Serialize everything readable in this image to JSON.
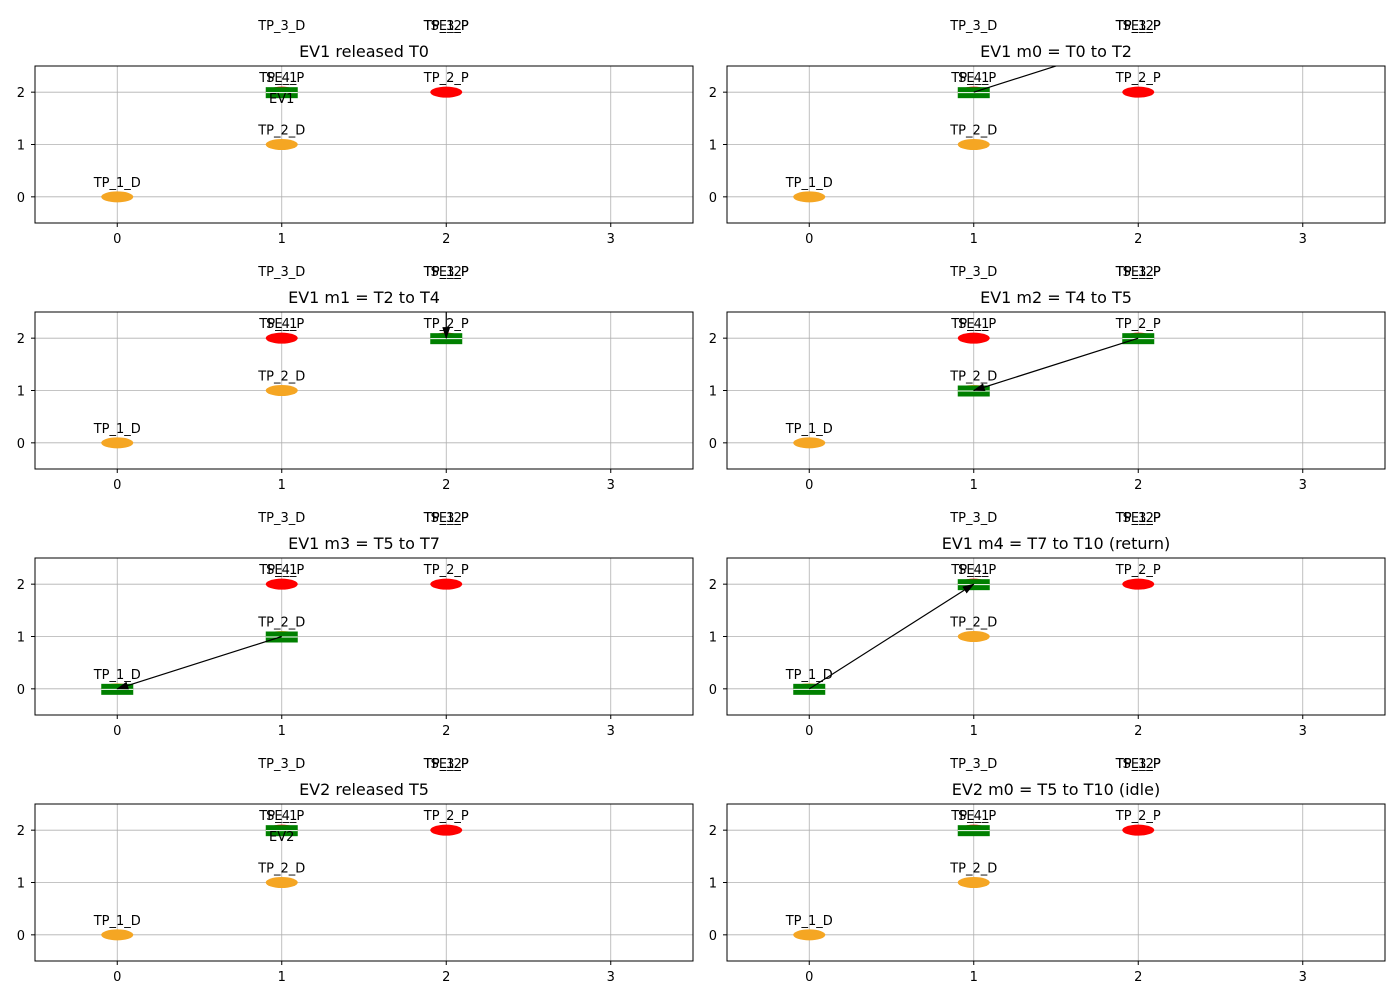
{
  "figure": {
    "background": "#ffffff"
  },
  "colors": {
    "drop_marker": "#f5a623",
    "pickup_marker": "#ff0000",
    "vehicle": "#008000",
    "grid": "#b0b0b0",
    "arrow": "#000000",
    "axes": "#000000"
  },
  "chart_data": [
    {
      "type": "scatter",
      "title": "EV1 released T0",
      "xlim": [
        -0.5,
        3.5
      ],
      "ylim": [
        -0.5,
        2.5
      ],
      "xticks": [
        0,
        1,
        2,
        3
      ],
      "yticks": [
        0,
        1,
        2
      ],
      "grid": true,
      "points": [
        {
          "label": "TP_1_D",
          "x": 0,
          "y": 0,
          "kind": "drop"
        },
        {
          "label": "TP_2_D",
          "x": 1,
          "y": 1,
          "kind": "drop"
        },
        {
          "label": "TP_3_D",
          "x": 1,
          "y": 3,
          "kind": "drop"
        },
        {
          "label": "TP_1_P",
          "x": 2,
          "y": 3,
          "kind": "pickup"
        },
        {
          "label": "TP_2_P",
          "x": 2,
          "y": 2,
          "kind": "pickup"
        },
        {
          "label": "TP_3_P",
          "x": 2,
          "y": 3,
          "kind": "pickup"
        },
        {
          "label": "TP_4_P",
          "x": 1,
          "y": 2,
          "kind": "pickup"
        },
        {
          "label": "SE_1",
          "x": 1,
          "y": 2,
          "kind": "station"
        },
        {
          "label": "SE_2",
          "x": 2,
          "y": 3,
          "kind": "station"
        }
      ],
      "vehicles": [
        {
          "x": 1,
          "y": 2,
          "label": "EV1"
        }
      ],
      "arrows": []
    },
    {
      "type": "scatter",
      "title": "EV1 m0 = T0 to T2",
      "xlim": [
        -0.5,
        3.5
      ],
      "ylim": [
        -0.5,
        2.5
      ],
      "xticks": [
        0,
        1,
        2,
        3
      ],
      "yticks": [
        0,
        1,
        2
      ],
      "grid": true,
      "points": [
        {
          "label": "TP_1_D",
          "x": 0,
          "y": 0,
          "kind": "drop"
        },
        {
          "label": "TP_2_D",
          "x": 1,
          "y": 1,
          "kind": "drop"
        },
        {
          "label": "TP_3_D",
          "x": 1,
          "y": 3,
          "kind": "drop"
        },
        {
          "label": "TP_1_P",
          "x": 2,
          "y": 3,
          "kind": "pickup"
        },
        {
          "label": "TP_2_P",
          "x": 2,
          "y": 2,
          "kind": "pickup"
        },
        {
          "label": "TP_3_P",
          "x": 2,
          "y": 3,
          "kind": "pickup"
        },
        {
          "label": "TP_4_P",
          "x": 1,
          "y": 2,
          "kind": "pickup"
        },
        {
          "label": "SE_1",
          "x": 1,
          "y": 2,
          "kind": "station"
        },
        {
          "label": "SE_2",
          "x": 2,
          "y": 3,
          "kind": "station"
        }
      ],
      "vehicles": [
        {
          "x": 1,
          "y": 2,
          "label": ""
        }
      ],
      "arrows": [
        {
          "from": [
            1,
            2
          ],
          "to": [
            2,
            3
          ]
        }
      ]
    },
    {
      "type": "scatter",
      "title": "EV1 m1 = T2 to T4",
      "xlim": [
        -0.5,
        3.5
      ],
      "ylim": [
        -0.5,
        2.5
      ],
      "xticks": [
        0,
        1,
        2,
        3
      ],
      "yticks": [
        0,
        1,
        2
      ],
      "grid": true,
      "points": [
        {
          "label": "TP_1_D",
          "x": 0,
          "y": 0,
          "kind": "drop"
        },
        {
          "label": "TP_2_D",
          "x": 1,
          "y": 1,
          "kind": "drop"
        },
        {
          "label": "TP_3_D",
          "x": 1,
          "y": 3,
          "kind": "drop"
        },
        {
          "label": "TP_1_P",
          "x": 2,
          "y": 3,
          "kind": "pickup"
        },
        {
          "label": "TP_2_P",
          "x": 2,
          "y": 2,
          "kind": "pickup"
        },
        {
          "label": "TP_3_P",
          "x": 2,
          "y": 3,
          "kind": "pickup"
        },
        {
          "label": "TP_4_P",
          "x": 1,
          "y": 2,
          "kind": "pickup"
        },
        {
          "label": "SE_1",
          "x": 1,
          "y": 2,
          "kind": "station"
        },
        {
          "label": "SE_2",
          "x": 2,
          "y": 3,
          "kind": "station"
        }
      ],
      "vehicles": [
        {
          "x": 2,
          "y": 2,
          "label": ""
        }
      ],
      "arrows": [
        {
          "from": [
            2,
            3
          ],
          "to": [
            2,
            2
          ]
        }
      ]
    },
    {
      "type": "scatter",
      "title": "EV1 m2 = T4 to T5",
      "xlim": [
        -0.5,
        3.5
      ],
      "ylim": [
        -0.5,
        2.5
      ],
      "xticks": [
        0,
        1,
        2,
        3
      ],
      "yticks": [
        0,
        1,
        2
      ],
      "grid": true,
      "points": [
        {
          "label": "TP_1_D",
          "x": 0,
          "y": 0,
          "kind": "drop"
        },
        {
          "label": "TP_2_D",
          "x": 1,
          "y": 1,
          "kind": "drop"
        },
        {
          "label": "TP_3_D",
          "x": 1,
          "y": 3,
          "kind": "drop"
        },
        {
          "label": "TP_1_P",
          "x": 2,
          "y": 3,
          "kind": "pickup"
        },
        {
          "label": "TP_2_P",
          "x": 2,
          "y": 2,
          "kind": "pickup"
        },
        {
          "label": "TP_3_P",
          "x": 2,
          "y": 3,
          "kind": "pickup"
        },
        {
          "label": "TP_4_P",
          "x": 1,
          "y": 2,
          "kind": "pickup"
        },
        {
          "label": "SE_1",
          "x": 1,
          "y": 2,
          "kind": "station"
        },
        {
          "label": "SE_2",
          "x": 2,
          "y": 3,
          "kind": "station"
        }
      ],
      "vehicles": [
        {
          "x": 1,
          "y": 1,
          "label": ""
        },
        {
          "x": 2,
          "y": 2,
          "label": ""
        }
      ],
      "arrows": [
        {
          "from": [
            2,
            2
          ],
          "to": [
            1,
            1
          ]
        }
      ]
    },
    {
      "type": "scatter",
      "title": "EV1 m3 = T5 to T7",
      "xlim": [
        -0.5,
        3.5
      ],
      "ylim": [
        -0.5,
        2.5
      ],
      "xticks": [
        0,
        1,
        2,
        3
      ],
      "yticks": [
        0,
        1,
        2
      ],
      "grid": true,
      "points": [
        {
          "label": "TP_1_D",
          "x": 0,
          "y": 0,
          "kind": "drop"
        },
        {
          "label": "TP_2_D",
          "x": 1,
          "y": 1,
          "kind": "drop"
        },
        {
          "label": "TP_3_D",
          "x": 1,
          "y": 3,
          "kind": "drop"
        },
        {
          "label": "TP_1_P",
          "x": 2,
          "y": 3,
          "kind": "pickup"
        },
        {
          "label": "TP_2_P",
          "x": 2,
          "y": 2,
          "kind": "pickup"
        },
        {
          "label": "TP_3_P",
          "x": 2,
          "y": 3,
          "kind": "pickup"
        },
        {
          "label": "TP_4_P",
          "x": 1,
          "y": 2,
          "kind": "pickup"
        },
        {
          "label": "SE_1",
          "x": 1,
          "y": 2,
          "kind": "station"
        },
        {
          "label": "SE_2",
          "x": 2,
          "y": 3,
          "kind": "station"
        }
      ],
      "vehicles": [
        {
          "x": 0,
          "y": 0,
          "label": ""
        },
        {
          "x": 1,
          "y": 1,
          "label": ""
        }
      ],
      "arrows": [
        {
          "from": [
            1,
            1
          ],
          "to": [
            0,
            0
          ]
        }
      ]
    },
    {
      "type": "scatter",
      "title": "EV1 m4 = T7 to T10 (return)",
      "xlim": [
        -0.5,
        3.5
      ],
      "ylim": [
        -0.5,
        2.5
      ],
      "xticks": [
        0,
        1,
        2,
        3
      ],
      "yticks": [
        0,
        1,
        2
      ],
      "grid": true,
      "points": [
        {
          "label": "TP_1_D",
          "x": 0,
          "y": 0,
          "kind": "drop"
        },
        {
          "label": "TP_2_D",
          "x": 1,
          "y": 1,
          "kind": "drop"
        },
        {
          "label": "TP_3_D",
          "x": 1,
          "y": 3,
          "kind": "drop"
        },
        {
          "label": "TP_1_P",
          "x": 2,
          "y": 3,
          "kind": "pickup"
        },
        {
          "label": "TP_2_P",
          "x": 2,
          "y": 2,
          "kind": "pickup"
        },
        {
          "label": "TP_3_P",
          "x": 2,
          "y": 3,
          "kind": "pickup"
        },
        {
          "label": "TP_4_P",
          "x": 1,
          "y": 2,
          "kind": "pickup"
        },
        {
          "label": "SE_1",
          "x": 1,
          "y": 2,
          "kind": "station"
        },
        {
          "label": "SE_2",
          "x": 2,
          "y": 3,
          "kind": "station"
        }
      ],
      "vehicles": [
        {
          "x": 0,
          "y": 0,
          "label": ""
        },
        {
          "x": 1,
          "y": 2,
          "label": ""
        }
      ],
      "arrows": [
        {
          "from": [
            0,
            0
          ],
          "to": [
            1,
            2
          ]
        }
      ]
    },
    {
      "type": "scatter",
      "title": "EV2 released T5",
      "xlim": [
        -0.5,
        3.5
      ],
      "ylim": [
        -0.5,
        2.5
      ],
      "xticks": [
        0,
        1,
        2,
        3
      ],
      "yticks": [
        0,
        1,
        2
      ],
      "grid": true,
      "points": [
        {
          "label": "TP_1_D",
          "x": 0,
          "y": 0,
          "kind": "drop"
        },
        {
          "label": "TP_2_D",
          "x": 1,
          "y": 1,
          "kind": "drop"
        },
        {
          "label": "TP_3_D",
          "x": 1,
          "y": 3,
          "kind": "drop"
        },
        {
          "label": "TP_1_P",
          "x": 2,
          "y": 3,
          "kind": "pickup"
        },
        {
          "label": "TP_2_P",
          "x": 2,
          "y": 2,
          "kind": "pickup"
        },
        {
          "label": "TP_3_P",
          "x": 2,
          "y": 3,
          "kind": "pickup"
        },
        {
          "label": "TP_4_P",
          "x": 1,
          "y": 2,
          "kind": "pickup"
        },
        {
          "label": "SE_1",
          "x": 1,
          "y": 2,
          "kind": "station"
        },
        {
          "label": "SE_2",
          "x": 2,
          "y": 3,
          "kind": "station"
        }
      ],
      "vehicles": [
        {
          "x": 1,
          "y": 2,
          "label": "EV2"
        }
      ],
      "arrows": []
    },
    {
      "type": "scatter",
      "title": "EV2 m0 = T5 to T10 (idle)",
      "xlim": [
        -0.5,
        3.5
      ],
      "ylim": [
        -0.5,
        2.5
      ],
      "xticks": [
        0,
        1,
        2,
        3
      ],
      "yticks": [
        0,
        1,
        2
      ],
      "grid": true,
      "points": [
        {
          "label": "TP_1_D",
          "x": 0,
          "y": 0,
          "kind": "drop"
        },
        {
          "label": "TP_2_D",
          "x": 1,
          "y": 1,
          "kind": "drop"
        },
        {
          "label": "TP_3_D",
          "x": 1,
          "y": 3,
          "kind": "drop"
        },
        {
          "label": "TP_1_P",
          "x": 2,
          "y": 3,
          "kind": "pickup"
        },
        {
          "label": "TP_2_P",
          "x": 2,
          "y": 2,
          "kind": "pickup"
        },
        {
          "label": "TP_3_P",
          "x": 2,
          "y": 3,
          "kind": "pickup"
        },
        {
          "label": "TP_4_P",
          "x": 1,
          "y": 2,
          "kind": "pickup"
        },
        {
          "label": "SE_1",
          "x": 1,
          "y": 2,
          "kind": "station"
        },
        {
          "label": "SE_2",
          "x": 2,
          "y": 3,
          "kind": "station"
        }
      ],
      "vehicles": [
        {
          "x": 1,
          "y": 2,
          "label": ""
        }
      ],
      "arrows": []
    }
  ]
}
